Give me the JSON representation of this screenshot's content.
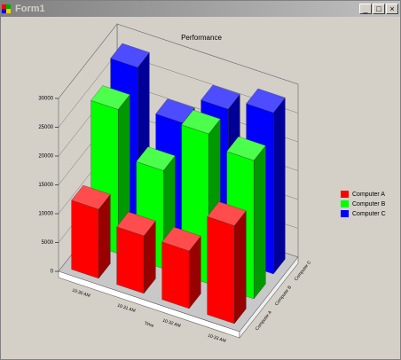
{
  "window": {
    "title": "Form1"
  },
  "chart_data": {
    "type": "bar3d",
    "title": "Performance",
    "categories": [
      "10:30 AM",
      "10:31 AM",
      "10:32 AM",
      "10:33 AM"
    ],
    "x_label": "Time",
    "series": [
      {
        "name": "Computer A",
        "color": "#ff0000",
        "values": [
          12000,
          10000,
          10000,
          17000
        ]
      },
      {
        "name": "Computer B",
        "color": "#00ff00",
        "values": [
          25000,
          17000,
          26000,
          24000
        ]
      },
      {
        "name": "Computer C",
        "color": "#0000ff",
        "values": [
          28000,
          21000,
          26000,
          28000
        ]
      }
    ],
    "ylim": [
      0,
      30000
    ],
    "yticks": [
      0,
      5000,
      10000,
      15000,
      20000,
      25000,
      30000
    ],
    "grid": true,
    "legend": "right"
  }
}
